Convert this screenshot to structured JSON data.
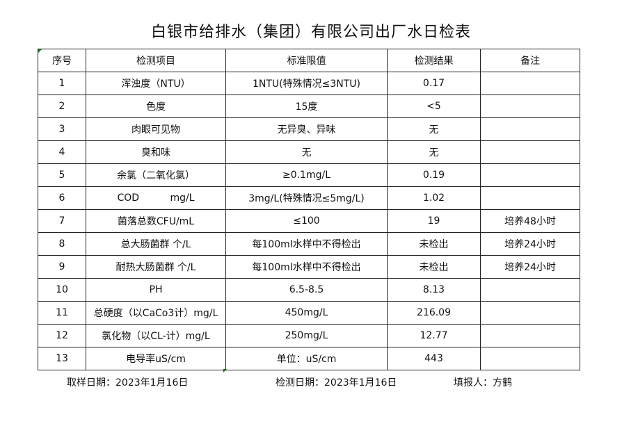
{
  "title": "白银市给排水（集团）有限公司出厂水日检表",
  "table": {
    "headers": [
      "序号",
      "检测项目",
      "标准限值",
      "检测结果",
      "备注"
    ],
    "rows": [
      [
        "1",
        "浑浊度（NTU）",
        "1NTU(特殊情况≤3NTU)",
        "0.17",
        ""
      ],
      [
        "2",
        "色度",
        "15度",
        "<5",
        ""
      ],
      [
        "3",
        "肉眼可见物",
        "无异臭、异味",
        "无",
        ""
      ],
      [
        "4",
        "臭和味",
        "无",
        "无",
        ""
      ],
      [
        "5",
        "余氯（二氧化氯）",
        "≥0.1mg/L",
        "0.19",
        ""
      ],
      [
        "6",
        "COD          mg/L",
        "3mg/L(特殊情况≤5mg/L)",
        "1.02",
        ""
      ],
      [
        "7",
        "菌落总数CFU/mL",
        "≤100",
        "19",
        "培养48小时"
      ],
      [
        "8",
        "总大肠菌群 个/L",
        "每100ml水样中不得检出",
        "未检出",
        "培养24小时"
      ],
      [
        "9",
        "耐热大肠菌群 个/L",
        "每100ml水样中不得检出",
        "未检出",
        "培养24小时"
      ],
      [
        "10",
        "PH",
        "6.5-8.5",
        "8.13",
        ""
      ],
      [
        "11",
        "总硬度（以CaCo3计）mg/L",
        "450mg/L",
        "216.09",
        ""
      ],
      [
        "12",
        "氯化物（以CL-计）mg/L",
        "250mg/L",
        "12.77",
        ""
      ],
      [
        "13",
        "电导率uS/cm",
        "单位：uS/cm",
        "443",
        ""
      ]
    ]
  },
  "footer": {
    "sampling_date": "取样日期：2023年1月16日",
    "test_date": "检测日期：2023年1月16日",
    "reporter": "填报人：方鹤"
  }
}
